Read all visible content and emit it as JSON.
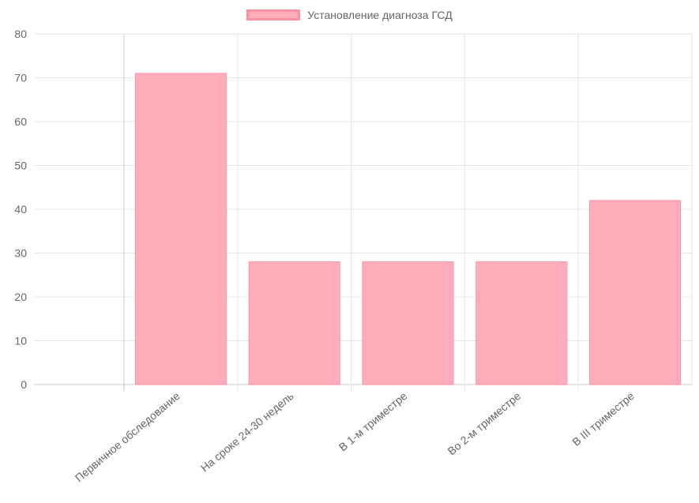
{
  "chart_data": {
    "type": "bar",
    "categories": [
      "Первичное обследование",
      "На сроке 24-30 недель",
      "В 1-м триместре",
      "Во 2-м триместре",
      "В III триместре"
    ],
    "series": [
      {
        "name": "Установление диагноза ГСД",
        "values": [
          71,
          28,
          28,
          28,
          42
        ]
      }
    ],
    "ylim": [
      0,
      80
    ],
    "yticks": [
      0,
      10,
      20,
      30,
      40,
      50,
      60,
      70,
      80
    ],
    "grid": true,
    "legend_position": "top-center",
    "colors": {
      "bar_fill": "#ffadba",
      "bar_border": "#ff8fa3",
      "grid": "#e5e5e5",
      "axis": "#c8c8c8",
      "text": "#666666"
    }
  }
}
